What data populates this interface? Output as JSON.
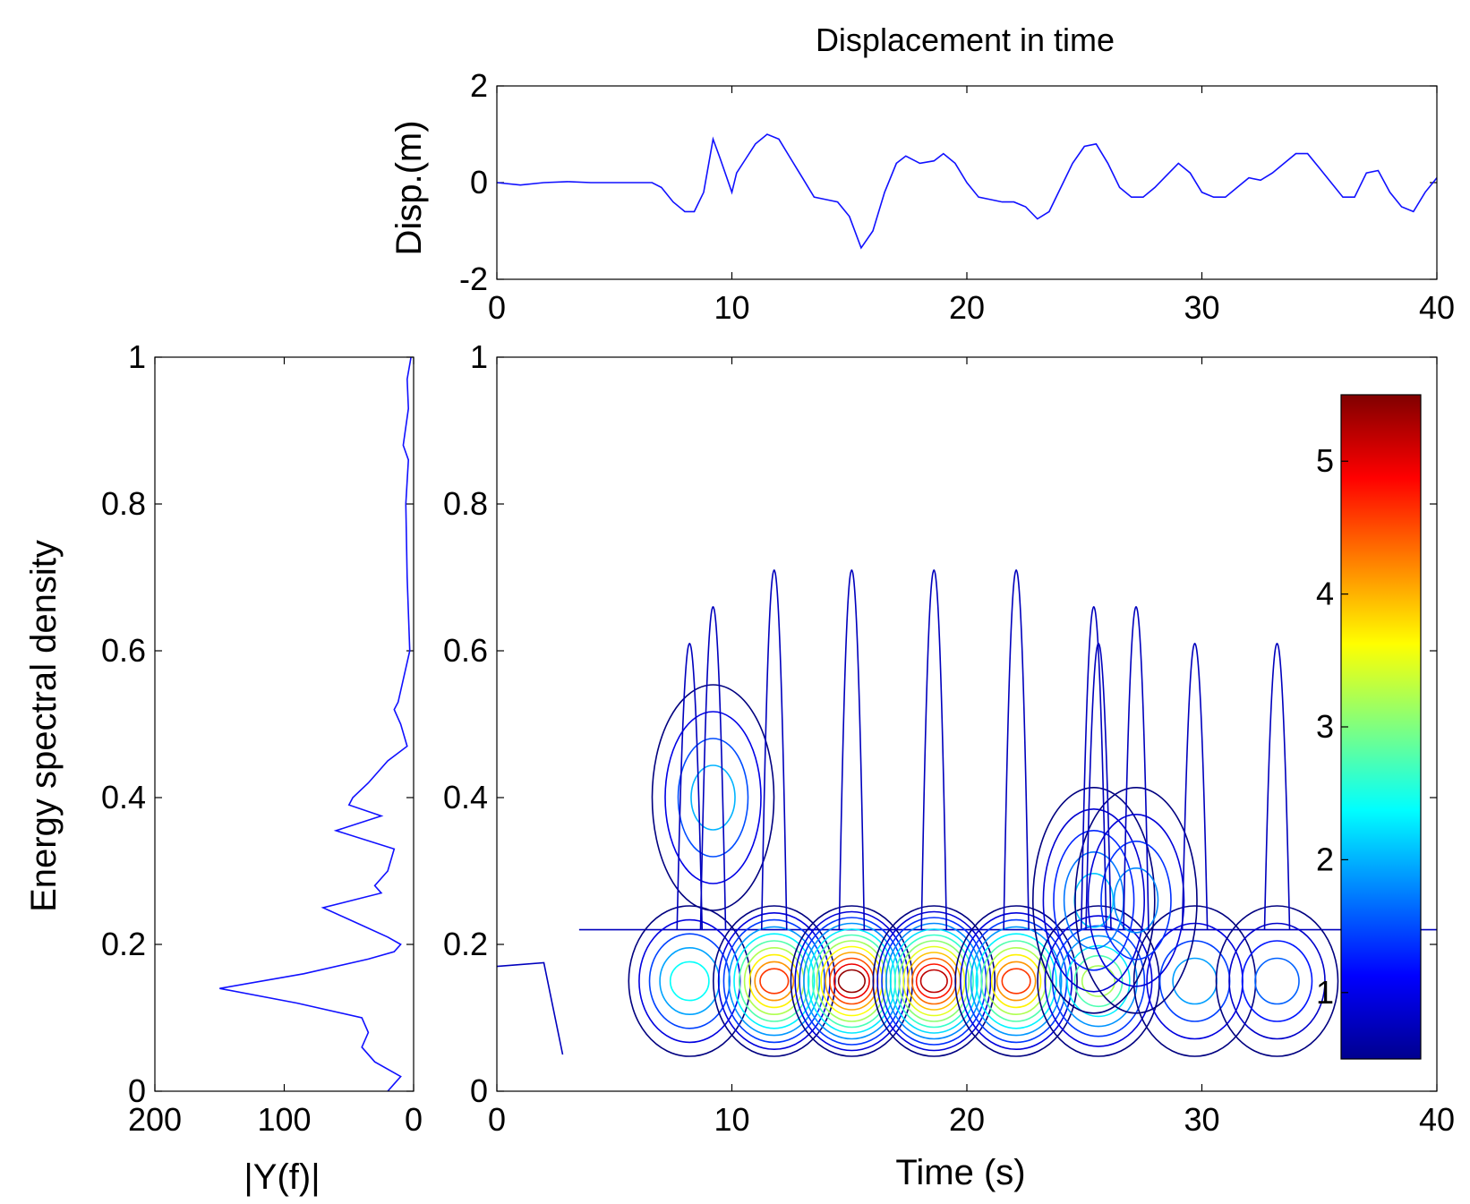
{
  "chart_data": [
    {
      "id": "displacement",
      "type": "line",
      "title": "Displacement in time",
      "xlabel": "",
      "ylabel": "Disp.(m)",
      "xlim": [
        0,
        40
      ],
      "ylim": [
        -2,
        2
      ],
      "xticks": [
        "0",
        "10",
        "20",
        "30",
        "40"
      ],
      "yticks": [
        "2",
        "0",
        "-2"
      ],
      "series": [
        {
          "name": "displacement",
          "color": "#1010ff",
          "x": [
            0,
            1,
            2,
            3,
            4,
            5,
            6,
            6.6,
            7,
            7.5,
            8,
            8.4,
            8.8,
            9.2,
            9.5,
            10,
            10.2,
            10.6,
            11,
            11.5,
            12,
            12.5,
            13,
            13.5,
            14,
            14.5,
            15,
            15.5,
            16,
            16.5,
            17,
            17.4,
            18,
            18.6,
            19,
            19.5,
            20,
            20.5,
            21,
            21.5,
            22,
            22.5,
            23,
            23.5,
            24,
            24.5,
            25,
            25.5,
            26,
            26.5,
            27,
            27.5,
            28,
            28.5,
            29,
            29.5,
            30,
            30.5,
            31,
            31.5,
            32,
            32.5,
            33,
            33.5,
            34,
            34.5,
            35,
            35.5,
            36,
            36.5,
            37,
            37.5,
            38,
            38.5,
            39,
            39.5,
            40
          ],
          "values": [
            0,
            -0.05,
            0,
            0.02,
            0,
            0,
            0,
            0,
            -0.1,
            -0.4,
            -0.6,
            -0.6,
            -0.2,
            0.9,
            0.5,
            -0.2,
            0.2,
            0.5,
            0.8,
            1.0,
            0.9,
            0.5,
            0.1,
            -0.3,
            -0.35,
            -0.4,
            -0.7,
            -1.35,
            -1.0,
            -0.2,
            0.4,
            0.55,
            0.4,
            0.45,
            0.6,
            0.4,
            0.0,
            -0.3,
            -0.35,
            -0.4,
            -0.4,
            -0.5,
            -0.75,
            -0.6,
            -0.1,
            0.4,
            0.75,
            0.8,
            0.4,
            -0.1,
            -0.3,
            -0.3,
            -0.1,
            0.15,
            0.4,
            0.2,
            -0.2,
            -0.3,
            -0.3,
            -0.1,
            0.1,
            0.05,
            0.2,
            0.4,
            0.6,
            0.6,
            0.3,
            0.0,
            -0.3,
            -0.3,
            0.2,
            0.25,
            -0.2,
            -0.5,
            -0.6,
            -0.2,
            0.1
          ]
        }
      ]
    },
    {
      "id": "spectrum",
      "type": "line",
      "title": "",
      "xlabel": "|Y(f)|",
      "ylabel": "Energy spectral density",
      "xlim": [
        200,
        0
      ],
      "ylim": [
        0,
        1
      ],
      "xticks": [
        "200",
        "100",
        "0"
      ],
      "yticks": [
        "0",
        "0.2",
        "0.4",
        "0.6",
        "0.8",
        "1"
      ],
      "series": [
        {
          "name": "|Y(f)|",
          "color": "#1010ff",
          "freq": [
            1.0,
            0.97,
            0.93,
            0.88,
            0.86,
            0.8,
            0.7,
            0.6,
            0.53,
            0.52,
            0.5,
            0.47,
            0.45,
            0.42,
            0.4,
            0.39,
            0.375,
            0.355,
            0.33,
            0.3,
            0.28,
            0.27,
            0.25,
            0.23,
            0.21,
            0.2,
            0.19,
            0.18,
            0.16,
            0.14,
            0.12,
            0.1,
            0.08,
            0.06,
            0.04,
            0.02,
            0.01,
            0.0
          ],
          "magnitude": [
            2,
            5,
            4,
            8,
            4,
            6,
            5,
            3,
            12,
            15,
            10,
            5,
            20,
            35,
            47,
            50,
            25,
            60,
            15,
            20,
            30,
            25,
            70,
            45,
            20,
            10,
            15,
            35,
            85,
            150,
            90,
            40,
            35,
            40,
            30,
            10,
            15,
            20
          ]
        }
      ]
    },
    {
      "id": "time-frequency",
      "type": "contour",
      "title": "",
      "xlabel": "Time (s)",
      "ylabel": "",
      "xlim": [
        0,
        40
      ],
      "ylim": [
        0,
        1
      ],
      "xticks": [
        "0",
        "10",
        "20",
        "30",
        "40"
      ],
      "yticks": [
        "0",
        "0.2",
        "0.4",
        "0.6",
        "0.8",
        "1"
      ],
      "colorbar": {
        "ticks": [
          "1",
          "2",
          "3",
          "4",
          "5"
        ],
        "range": [
          0.5,
          5.5
        ],
        "colormap": "jet"
      },
      "peaks": [
        {
          "t": 8.2,
          "f": 0.15,
          "level": 2.4
        },
        {
          "t": 11.8,
          "f": 0.15,
          "level": 4.6
        },
        {
          "t": 15.1,
          "f": 0.15,
          "level": 5.4
        },
        {
          "t": 18.6,
          "f": 0.15,
          "level": 5.2
        },
        {
          "t": 22.1,
          "f": 0.15,
          "level": 4.6
        },
        {
          "t": 25.6,
          "f": 0.15,
          "level": 3.2
        },
        {
          "t": 29.7,
          "f": 0.15,
          "level": 1.9
        },
        {
          "t": 33.2,
          "f": 0.15,
          "level": 1.6
        },
        {
          "t": 9.2,
          "f": 0.4,
          "level": 2.0
        },
        {
          "t": 25.4,
          "f": 0.26,
          "level": 2.1
        },
        {
          "t": 27.2,
          "f": 0.26,
          "level": 1.8
        }
      ]
    }
  ]
}
